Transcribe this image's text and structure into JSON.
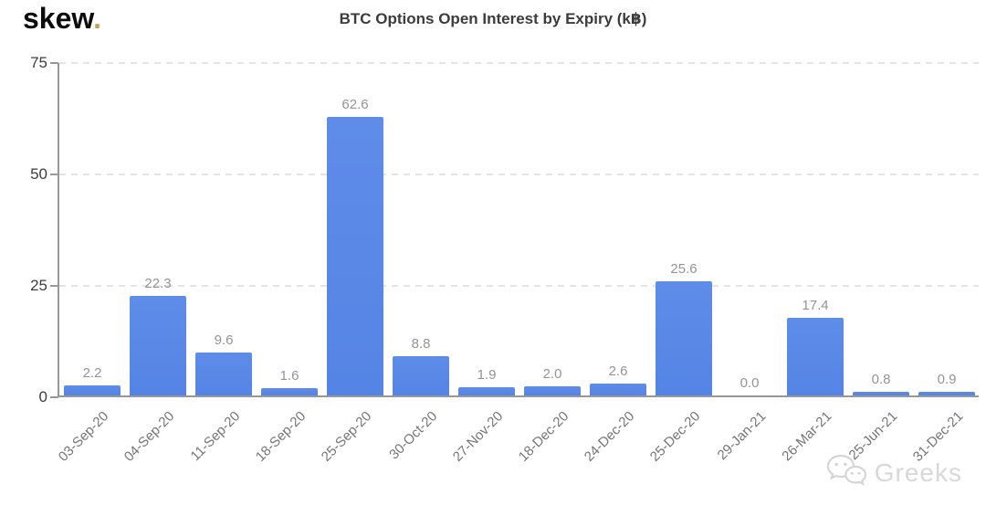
{
  "brand": {
    "logo_text": "skew",
    "logo_dot": ".",
    "logo_dot_color": "#c6a053"
  },
  "chart_data": {
    "type": "bar",
    "title": "BTC Options Open Interest by Expiry (k฿)",
    "categories": [
      "03-Sep-20",
      "04-Sep-20",
      "11-Sep-20",
      "18-Sep-20",
      "25-Sep-20",
      "30-Oct-20",
      "27-Nov-20",
      "18-Dec-20",
      "24-Dec-20",
      "25-Dec-20",
      "29-Jan-21",
      "26-Mar-21",
      "25-Jun-21",
      "31-Dec-21"
    ],
    "values": [
      2.2,
      22.3,
      9.6,
      1.6,
      62.6,
      8.8,
      1.9,
      2.0,
      2.6,
      25.6,
      0.0,
      17.4,
      0.8,
      0.9
    ],
    "xlabel": "",
    "ylabel": "",
    "ylim": [
      0,
      75
    ],
    "yticks": [
      0,
      25,
      50,
      75
    ],
    "grid": true,
    "legend": false,
    "bar_color": "#5484e5",
    "bar_color_light": "#5f8ce9",
    "value_label_color": "#949494",
    "axis_color": "#979797",
    "gridline_color": "#e4e4e4"
  },
  "watermark": {
    "icon": "wechat-icon",
    "text": "Greeks"
  }
}
